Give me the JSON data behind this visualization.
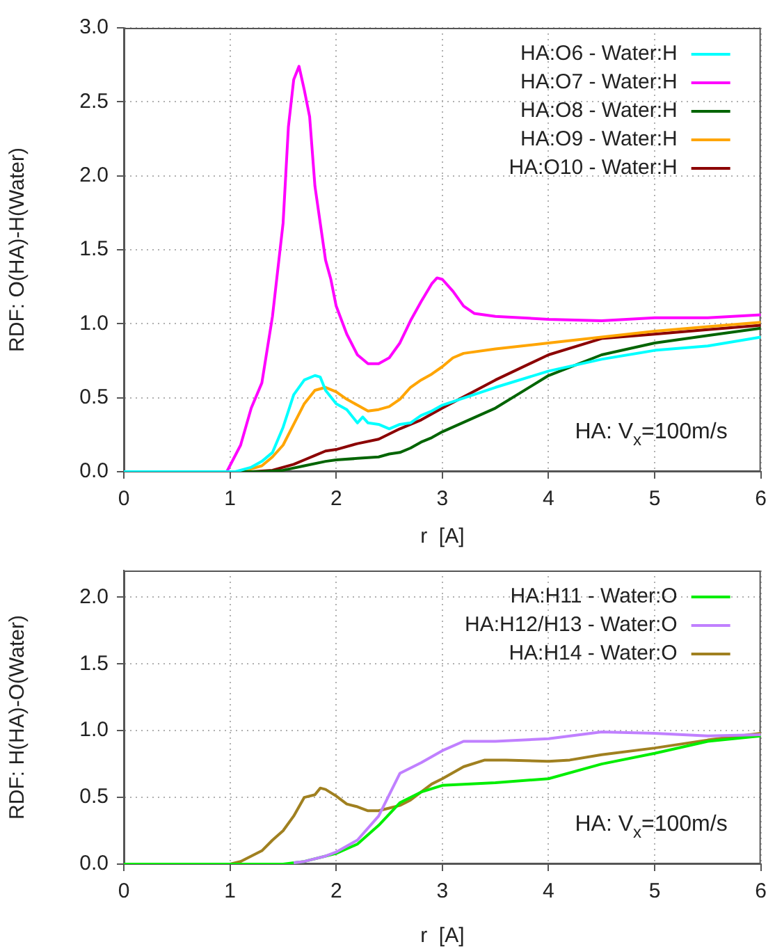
{
  "chart_data": [
    {
      "type": "line",
      "xlabel": "r  [A]",
      "ylabel": "RDF: O(HA)-H(Water)",
      "annotations": [
        "HA: V$_{x}$=100m/s"
      ],
      "xlim": [
        0,
        6
      ],
      "xticks": [
        0,
        1,
        2,
        3,
        4,
        5,
        6
      ],
      "ylim": [
        0,
        3
      ],
      "yticks": [
        {
          "value": 0,
          "label": "0.0"
        },
        0.5,
        {
          "value": 1,
          "label": "1.0"
        },
        1.5,
        {
          "value": 2,
          "label": "2.0"
        },
        2.5,
        {
          "value": 3,
          "label": "3.0"
        }
      ],
      "grid": true,
      "legend": "top right",
      "marker": "none",
      "line_style": "solid",
      "series": [
        {
          "name": "HA:O6 - Water:H",
          "color": "#00ffff",
          "x": [
            0,
            1.05,
            1.2,
            1.3,
            1.4,
            1.5,
            1.6,
            1.7,
            1.8,
            1.85,
            1.9,
            2.0,
            2.1,
            2.2,
            2.25,
            2.3,
            2.4,
            2.5,
            2.6,
            2.7,
            2.8,
            2.9,
            3.0,
            3.5,
            4.0,
            4.5,
            5.0,
            5.5,
            6.0
          ],
          "values": [
            0,
            0,
            0.03,
            0.07,
            0.13,
            0.3,
            0.52,
            0.62,
            0.65,
            0.64,
            0.55,
            0.46,
            0.42,
            0.33,
            0.37,
            0.33,
            0.32,
            0.29,
            0.32,
            0.33,
            0.38,
            0.41,
            0.45,
            0.57,
            0.68,
            0.76,
            0.82,
            0.85,
            0.91
          ]
        },
        {
          "name": "HA:O7 - Water:H",
          "color": "#ff00ff",
          "x": [
            0,
            0.97,
            1.1,
            1.2,
            1.3,
            1.4,
            1.5,
            1.55,
            1.6,
            1.65,
            1.7,
            1.75,
            1.8,
            1.9,
            1.95,
            2.0,
            2.1,
            2.2,
            2.3,
            2.4,
            2.5,
            2.6,
            2.7,
            2.8,
            2.9,
            2.95,
            3.0,
            3.1,
            3.2,
            3.3,
            3.5,
            4.0,
            4.5,
            5.0,
            5.5,
            6.0
          ],
          "values": [
            0,
            0,
            0.18,
            0.43,
            0.6,
            1.05,
            1.68,
            2.33,
            2.65,
            2.74,
            2.58,
            2.4,
            1.93,
            1.43,
            1.3,
            1.12,
            0.93,
            0.79,
            0.73,
            0.73,
            0.77,
            0.87,
            1.02,
            1.15,
            1.27,
            1.31,
            1.3,
            1.22,
            1.12,
            1.07,
            1.05,
            1.03,
            1.02,
            1.04,
            1.04,
            1.06
          ]
        },
        {
          "name": "HA:O8 - Water:H",
          "color": "#006400",
          "x": [
            0,
            1.3,
            1.5,
            1.7,
            1.9,
            2.0,
            2.2,
            2.4,
            2.5,
            2.6,
            2.7,
            2.8,
            2.9,
            3.0,
            3.5,
            4.0,
            4.5,
            5.0,
            5.5,
            6.0
          ],
          "values": [
            0,
            0,
            0.01,
            0.04,
            0.07,
            0.08,
            0.09,
            0.1,
            0.12,
            0.13,
            0.16,
            0.2,
            0.23,
            0.27,
            0.43,
            0.65,
            0.79,
            0.87,
            0.92,
            0.97
          ]
        },
        {
          "name": "HA:O9 - Water:H",
          "color": "#ffa500",
          "x": [
            0,
            1.1,
            1.3,
            1.4,
            1.5,
            1.6,
            1.7,
            1.8,
            1.9,
            2.0,
            2.1,
            2.2,
            2.3,
            2.4,
            2.5,
            2.6,
            2.7,
            2.8,
            2.9,
            3.0,
            3.1,
            3.2,
            3.5,
            4.0,
            4.5,
            5.0,
            5.5,
            6.0
          ],
          "values": [
            0,
            0,
            0.04,
            0.1,
            0.18,
            0.32,
            0.46,
            0.55,
            0.57,
            0.54,
            0.49,
            0.45,
            0.41,
            0.42,
            0.44,
            0.49,
            0.57,
            0.62,
            0.66,
            0.71,
            0.77,
            0.8,
            0.83,
            0.87,
            0.91,
            0.95,
            0.98,
            1.01
          ]
        },
        {
          "name": "HA:O10 - Water:H",
          "color": "#8b0000",
          "x": [
            0,
            1.2,
            1.4,
            1.6,
            1.7,
            1.8,
            1.9,
            2.0,
            2.2,
            2.4,
            2.6,
            2.8,
            2.9,
            3.0,
            3.5,
            4.0,
            4.5,
            5.0,
            5.5,
            6.0
          ],
          "values": [
            0,
            0,
            0.01,
            0.05,
            0.08,
            0.11,
            0.14,
            0.15,
            0.19,
            0.22,
            0.29,
            0.35,
            0.39,
            0.43,
            0.62,
            0.79,
            0.9,
            0.93,
            0.96,
            0.99
          ]
        }
      ]
    },
    {
      "type": "line",
      "xlabel": "r  [A]",
      "ylabel": "RDF: H(HA)-O(Water)",
      "annotations": [
        "HA: V$_{x}$=100m/s"
      ],
      "xlim": [
        0,
        6
      ],
      "xticks": [
        0,
        1,
        2,
        3,
        4,
        5,
        6
      ],
      "ylim": [
        0,
        2.2
      ],
      "yticks": [
        {
          "value": 0,
          "label": "0.0"
        },
        0.5,
        {
          "value": 1,
          "label": "1.0"
        },
        1.5,
        {
          "value": 2,
          "label": "2.0"
        }
      ],
      "grid": true,
      "legend": "top right",
      "marker": "none",
      "line_style": "solid",
      "series": [
        {
          "name": "HA:H11 - Water:O",
          "color": "#00ee00",
          "x": [
            0,
            1.5,
            1.7,
            1.9,
            2.0,
            2.2,
            2.4,
            2.6,
            2.8,
            3.0,
            3.5,
            4.0,
            4.5,
            5.0,
            5.5,
            6.0
          ],
          "values": [
            0,
            0,
            0.02,
            0.06,
            0.08,
            0.15,
            0.29,
            0.46,
            0.54,
            0.59,
            0.61,
            0.64,
            0.75,
            0.83,
            0.92,
            0.96
          ]
        },
        {
          "name": "HA:H12/H13 - Water:O",
          "color": "#c080ff",
          "x": [
            1.6,
            1.7,
            1.9,
            2.0,
            2.2,
            2.4,
            2.6,
            2.8,
            3.0,
            3.2,
            3.5,
            4.0,
            4.5,
            5.0,
            5.5,
            6.0
          ],
          "values": [
            0.01,
            0.02,
            0.06,
            0.09,
            0.18,
            0.36,
            0.68,
            0.76,
            0.85,
            0.92,
            0.92,
            0.94,
            0.99,
            0.98,
            0.96,
            0.97
          ]
        },
        {
          "name": "HA:H14 - Water:O",
          "color": "#a08020",
          "x": [
            0,
            1.0,
            1.1,
            1.2,
            1.3,
            1.4,
            1.5,
            1.6,
            1.7,
            1.8,
            1.85,
            1.9,
            2.0,
            2.1,
            2.2,
            2.3,
            2.4,
            2.5,
            2.6,
            2.7,
            2.8,
            2.9,
            3.0,
            3.2,
            3.4,
            3.6,
            4.0,
            4.2,
            4.5,
            5.0,
            5.5,
            6.0
          ],
          "values": [
            0,
            0,
            0.02,
            0.06,
            0.1,
            0.18,
            0.25,
            0.36,
            0.5,
            0.52,
            0.57,
            0.56,
            0.51,
            0.45,
            0.43,
            0.4,
            0.4,
            0.42,
            0.44,
            0.48,
            0.54,
            0.6,
            0.64,
            0.73,
            0.78,
            0.78,
            0.77,
            0.78,
            0.82,
            0.87,
            0.93,
            0.98
          ]
        }
      ]
    }
  ]
}
